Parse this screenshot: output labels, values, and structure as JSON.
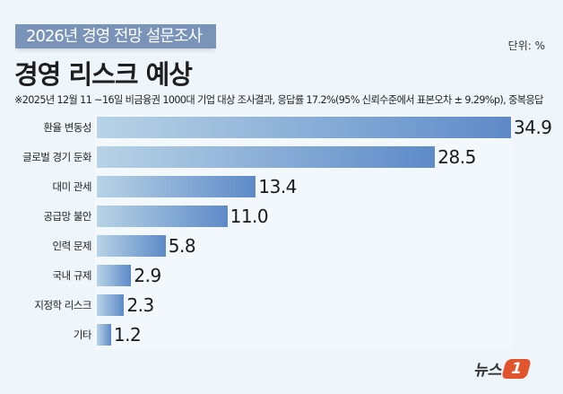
{
  "header": {
    "tag": "2026년 경영 전망 설문조사",
    "unit": "단위: %",
    "title": "경영 리스크 예상",
    "note": "※2025년 12월 11 ~16일 비금융권 1000대 기업 대상 조사결과, 응답률 17.2%(95% 신뢰수준에서 표본오차 ± 9.29%p), 중복응답"
  },
  "logo": {
    "text": "뉴스",
    "mark": "1"
  },
  "colors": {
    "bar_start": "#b8d3e6",
    "bar_end": "#5d8ac8",
    "background": "#eef6fc",
    "tag": "#7a93b8",
    "logo": "#e0552e"
  },
  "chart_data": {
    "type": "bar",
    "orientation": "horizontal",
    "categories": [
      "환율 변동성",
      "글로벌 경기 둔화",
      "대미 관세",
      "공급망 불안",
      "인력 문제",
      "국내 규제",
      "지정학 리스크",
      "기타"
    ],
    "values": [
      34.9,
      28.5,
      13.4,
      11.0,
      5.8,
      2.9,
      2.3,
      1.2
    ],
    "value_labels": [
      "34.9",
      "28.5",
      "13.4",
      "11.0",
      "5.8",
      "2.9",
      "2.3",
      "1.2"
    ],
    "title": "경영 리스크 예상",
    "unit": "%",
    "xlim": [
      0,
      35
    ],
    "grid": false
  }
}
